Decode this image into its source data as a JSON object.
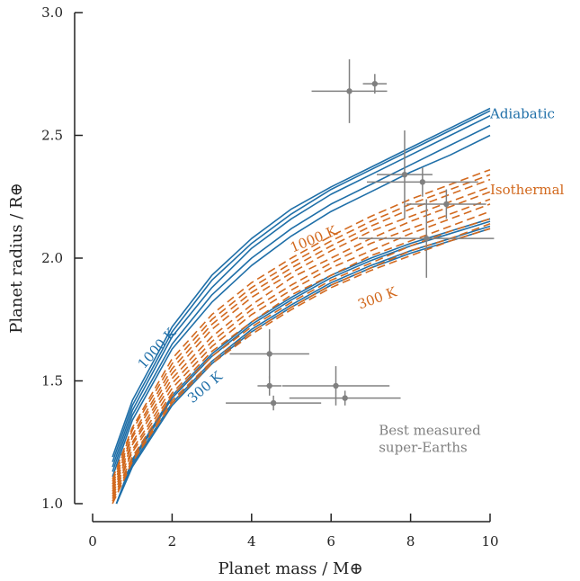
{
  "chart_data": {
    "type": "line",
    "title": "",
    "xlabel": "Planet mass / M⊕",
    "ylabel": "Planet radius / R⊕",
    "xlim": [
      0,
      10
    ],
    "ylim": [
      1.0,
      3.0
    ],
    "xticks": [
      0,
      2,
      4,
      6,
      8,
      10
    ],
    "yticks": [
      1.0,
      1.5,
      2.0,
      2.5,
      3.0
    ],
    "xtick_labels": [
      "0",
      "2",
      "4",
      "6",
      "8",
      "10"
    ],
    "ytick_labels": [
      "1.0",
      "1.5",
      "2.0",
      "2.5",
      "3.0"
    ],
    "grid": false,
    "colors": {
      "adiabatic": "#1f6fa8",
      "isothermal": "#d2691e",
      "measured": "#808080",
      "axis": "#222222"
    },
    "series": [
      {
        "group": "adiabatic",
        "style": "solid",
        "x": [
          0.5,
          1,
          2,
          3,
          4,
          5,
          6,
          7,
          8,
          9,
          10
        ],
        "y": [
          1.19,
          1.42,
          1.72,
          1.93,
          2.08,
          2.2,
          2.29,
          2.37,
          2.45,
          2.53,
          2.61
        ]
      },
      {
        "group": "adiabatic",
        "style": "solid",
        "x": [
          0.5,
          1,
          2,
          3,
          4,
          5,
          6,
          7,
          8,
          9,
          10
        ],
        "y": [
          1.17,
          1.4,
          1.7,
          1.91,
          2.06,
          2.18,
          2.28,
          2.36,
          2.44,
          2.52,
          2.6
        ]
      },
      {
        "group": "adiabatic",
        "style": "solid",
        "x": [
          0.5,
          1,
          2,
          3,
          4,
          5,
          6,
          7,
          8,
          9,
          10
        ],
        "y": [
          1.15,
          1.38,
          1.68,
          1.88,
          2.04,
          2.16,
          2.26,
          2.34,
          2.42,
          2.5,
          2.58
        ]
      },
      {
        "group": "adiabatic",
        "style": "solid",
        "x": [
          0.5,
          1,
          2,
          3,
          4,
          5,
          6,
          7,
          8,
          9,
          10
        ],
        "y": [
          1.13,
          1.36,
          1.65,
          1.85,
          2.0,
          2.12,
          2.22,
          2.3,
          2.38,
          2.46,
          2.54
        ]
      },
      {
        "group": "adiabatic",
        "style": "solid",
        "x": [
          0.5,
          1,
          2,
          3,
          4,
          5,
          6,
          7,
          8,
          9,
          10
        ],
        "y": [
          1.11,
          1.34,
          1.63,
          1.82,
          1.97,
          2.09,
          2.19,
          2.27,
          2.35,
          2.42,
          2.5
        ]
      },
      {
        "group": "adiabatic",
        "style": "solid",
        "x": [
          0.6,
          1,
          2,
          3,
          4,
          5,
          6,
          7,
          8,
          9,
          10
        ],
        "y": [
          1.0,
          1.18,
          1.44,
          1.61,
          1.74,
          1.84,
          1.93,
          2.0,
          2.06,
          2.11,
          2.16
        ]
      },
      {
        "group": "adiabatic",
        "style": "solid",
        "x": [
          0.6,
          1,
          2,
          3,
          4,
          5,
          6,
          7,
          8,
          9,
          10
        ],
        "y": [
          1.0,
          1.17,
          1.43,
          1.6,
          1.73,
          1.83,
          1.92,
          1.99,
          2.05,
          2.1,
          2.15
        ]
      },
      {
        "group": "adiabatic",
        "style": "solid",
        "x": [
          0.6,
          1,
          2,
          3,
          4,
          5,
          6,
          7,
          8,
          9,
          10
        ],
        "y": [
          1.0,
          1.16,
          1.41,
          1.58,
          1.71,
          1.81,
          1.9,
          1.97,
          2.03,
          2.08,
          2.13
        ]
      },
      {
        "group": "adiabatic",
        "style": "solid",
        "x": [
          0.6,
          1,
          2,
          3,
          4,
          5,
          6,
          7,
          8,
          9,
          10
        ],
        "y": [
          1.0,
          1.15,
          1.4,
          1.57,
          1.7,
          1.8,
          1.89,
          1.96,
          2.02,
          2.07,
          2.12
        ]
      },
      {
        "group": "isothermal",
        "style": "dashed",
        "x": [
          0.5,
          1,
          2,
          3,
          4,
          5,
          6,
          7,
          8,
          9,
          10
        ],
        "y": [
          1.1,
          1.31,
          1.59,
          1.77,
          1.9,
          2.0,
          2.09,
          2.17,
          2.24,
          2.3,
          2.36
        ]
      },
      {
        "group": "isothermal",
        "style": "dashed",
        "x": [
          0.5,
          1,
          2,
          3,
          4,
          5,
          6,
          7,
          8,
          9,
          10
        ],
        "y": [
          1.09,
          1.3,
          1.57,
          1.75,
          1.88,
          1.98,
          2.07,
          2.15,
          2.22,
          2.28,
          2.34
        ]
      },
      {
        "group": "isothermal",
        "style": "dashed",
        "x": [
          0.5,
          1,
          2,
          3,
          4,
          5,
          6,
          7,
          8,
          9,
          10
        ],
        "y": [
          1.08,
          1.28,
          1.55,
          1.73,
          1.86,
          1.96,
          2.05,
          2.13,
          2.2,
          2.26,
          2.32
        ]
      },
      {
        "group": "isothermal",
        "style": "dashed",
        "x": [
          0.5,
          1,
          2,
          3,
          4,
          5,
          6,
          7,
          8,
          9,
          10
        ],
        "y": [
          1.07,
          1.27,
          1.53,
          1.71,
          1.84,
          1.94,
          2.03,
          2.11,
          2.17,
          2.23,
          2.29
        ]
      },
      {
        "group": "isothermal",
        "style": "dashed",
        "x": [
          0.5,
          1,
          2,
          3,
          4,
          5,
          6,
          7,
          8,
          9,
          10
        ],
        "y": [
          1.06,
          1.25,
          1.51,
          1.68,
          1.81,
          1.92,
          2.0,
          2.08,
          2.15,
          2.21,
          2.27
        ]
      },
      {
        "group": "isothermal",
        "style": "dashed",
        "x": [
          0.5,
          1,
          2,
          3,
          4,
          5,
          6,
          7,
          8,
          9,
          10
        ],
        "y": [
          1.05,
          1.24,
          1.49,
          1.66,
          1.79,
          1.89,
          1.98,
          2.06,
          2.12,
          2.18,
          2.24
        ]
      },
      {
        "group": "isothermal",
        "style": "dashed",
        "x": [
          0.5,
          1,
          2,
          3,
          4,
          5,
          6,
          7,
          8,
          9,
          10
        ],
        "y": [
          1.04,
          1.22,
          1.47,
          1.64,
          1.77,
          1.87,
          1.96,
          2.03,
          2.1,
          2.16,
          2.22
        ]
      },
      {
        "group": "isothermal",
        "style": "dashed",
        "x": [
          0.5,
          1,
          2,
          3,
          4,
          5,
          6,
          7,
          8,
          9,
          10
        ],
        "y": [
          1.03,
          1.21,
          1.45,
          1.62,
          1.74,
          1.85,
          1.93,
          2.01,
          2.07,
          2.13,
          2.19
        ]
      },
      {
        "group": "isothermal",
        "style": "dashed",
        "x": [
          0.5,
          1,
          2,
          3,
          4,
          5,
          6,
          7,
          8,
          9,
          10
        ],
        "y": [
          1.02,
          1.19,
          1.44,
          1.6,
          1.72,
          1.82,
          1.91,
          1.98,
          2.05,
          2.11,
          2.16
        ]
      },
      {
        "group": "isothermal",
        "style": "dashed",
        "x": [
          0.5,
          1,
          2,
          3,
          4,
          5,
          6,
          7,
          8,
          9,
          10
        ],
        "y": [
          1.01,
          1.18,
          1.42,
          1.58,
          1.7,
          1.8,
          1.89,
          1.96,
          2.03,
          2.08,
          2.14
        ]
      },
      {
        "group": "isothermal",
        "style": "dashed",
        "x": [
          0.5,
          1,
          2,
          3,
          4,
          5,
          6,
          7,
          8,
          9,
          10
        ],
        "y": [
          1.0,
          1.17,
          1.41,
          1.57,
          1.69,
          1.79,
          1.88,
          1.95,
          2.01,
          2.07,
          2.12
        ]
      }
    ],
    "measured": [
      {
        "x": 6.46,
        "y": 2.68,
        "xerr": [
          0.95,
          0.95
        ],
        "yerr": [
          0.13,
          0.13
        ]
      },
      {
        "x": 7.1,
        "y": 2.71,
        "xerr": [
          0.3,
          0.3
        ],
        "yerr": [
          0.04,
          0.04
        ]
      },
      {
        "x": 7.85,
        "y": 2.34,
        "xerr": [
          0.7,
          0.7
        ],
        "yerr": [
          0.18,
          0.18
        ]
      },
      {
        "x": 8.3,
        "y": 2.31,
        "xerr": [
          1.4,
          1.4
        ],
        "yerr": [
          0.06,
          0.06
        ]
      },
      {
        "x": 8.9,
        "y": 2.22,
        "xerr": [
          1.0,
          1.0
        ],
        "yerr": [
          0.06,
          0.06
        ]
      },
      {
        "x": 8.4,
        "y": 2.08,
        "xerr": [
          1.7,
          1.7
        ],
        "yerr": [
          0.16,
          0.16
        ]
      },
      {
        "x": 4.45,
        "y": 1.61,
        "xerr": [
          1.0,
          1.0
        ],
        "yerr": [
          0.1,
          0.1
        ]
      },
      {
        "x": 4.45,
        "y": 1.48,
        "xerr": [
          0.3,
          0.3
        ],
        "yerr": [
          0.04,
          0.04
        ]
      },
      {
        "x": 4.55,
        "y": 1.41,
        "xerr": [
          1.2,
          1.2
        ],
        "yerr": [
          0.03,
          0.03
        ]
      },
      {
        "x": 6.12,
        "y": 1.48,
        "xerr": [
          1.35,
          1.35
        ],
        "yerr": [
          0.08,
          0.08
        ]
      },
      {
        "x": 6.35,
        "y": 1.43,
        "xerr": [
          1.4,
          1.4
        ],
        "yerr": [
          0.03,
          0.03
        ]
      }
    ],
    "annotations": [
      {
        "text": "Adiabatic",
        "x": 10.0,
        "y": 2.57,
        "color": "adiabatic",
        "anchor": "start",
        "rotate": 0
      },
      {
        "text": "Isothermal",
        "x": 10.0,
        "y": 2.26,
        "color": "isothermal",
        "anchor": "start",
        "rotate": 0
      },
      {
        "text": "1000 K",
        "x": 1.7,
        "y": 1.62,
        "color": "adiabatic",
        "anchor": "middle",
        "rotate": -48
      },
      {
        "text": "300 K",
        "x": 2.9,
        "y": 1.46,
        "color": "adiabatic",
        "anchor": "middle",
        "rotate": -40
      },
      {
        "text": "1000 K",
        "x": 5.6,
        "y": 2.06,
        "color": "isothermal",
        "anchor": "middle",
        "rotate": -22
      },
      {
        "text": "300 K",
        "x": 7.2,
        "y": 1.82,
        "color": "isothermal",
        "anchor": "middle",
        "rotate": -20
      },
      {
        "text": "Best measured",
        "x": 7.2,
        "y": 1.28,
        "color": "measured",
        "anchor": "start",
        "rotate": 0
      },
      {
        "text": "super-Earths",
        "x": 7.2,
        "y": 1.21,
        "color": "measured",
        "anchor": "start",
        "rotate": 0
      }
    ]
  }
}
